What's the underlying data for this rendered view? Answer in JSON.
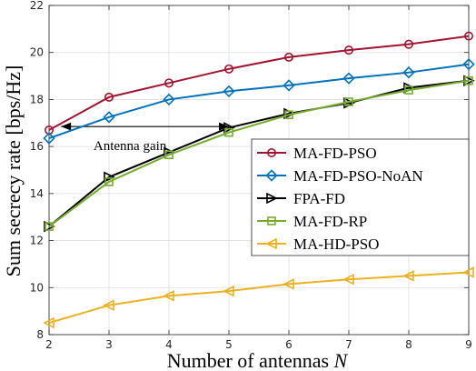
{
  "chart_data": {
    "type": "line",
    "title": "",
    "xlabel_text": "Number of antennas ",
    "xlabel_var": "N",
    "ylabel": "Sum secrecy rate [bps/Hz]",
    "xlim": [
      2,
      9
    ],
    "ylim": [
      8,
      22
    ],
    "xticks": [
      2,
      3,
      4,
      5,
      6,
      7,
      8,
      9
    ],
    "yticks": [
      8,
      10,
      12,
      14,
      16,
      18,
      20,
      22
    ],
    "grid": true,
    "legend_position": "center-right",
    "x": [
      2,
      3,
      4,
      5,
      6,
      7,
      8,
      9
    ],
    "series": [
      {
        "name": "MA-FD-PSO",
        "color": "#a2142f",
        "marker": "circle",
        "values": [
          16.7,
          18.1,
          18.7,
          19.3,
          19.8,
          20.1,
          20.35,
          20.7
        ]
      },
      {
        "name": "MA-FD-PSO-NoAN",
        "color": "#0072bd",
        "marker": "diamond",
        "values": [
          16.35,
          17.25,
          18.0,
          18.35,
          18.6,
          18.9,
          19.15,
          19.5
        ]
      },
      {
        "name": "FPA-FD",
        "color": "#000000",
        "marker": "triangle-right",
        "values": [
          12.6,
          14.7,
          15.75,
          16.8,
          17.4,
          17.85,
          18.5,
          18.8
        ]
      },
      {
        "name": "MA-FD-RP",
        "color": "#77ac30",
        "marker": "square",
        "values": [
          12.6,
          14.5,
          15.65,
          16.6,
          17.35,
          17.9,
          18.4,
          18.8
        ]
      },
      {
        "name": "MA-HD-PSO",
        "color": "#edb120",
        "marker": "triangle-left",
        "values": [
          8.5,
          9.25,
          9.65,
          9.85,
          10.15,
          10.35,
          10.5,
          10.65
        ]
      }
    ],
    "annotations": [
      {
        "text": "Antenna gain",
        "arrow_from_x": 2.2,
        "arrow_to_x": 5.0,
        "arrow_y": 16.85,
        "label_x": 3.35,
        "label_y": 16.05
      }
    ]
  }
}
